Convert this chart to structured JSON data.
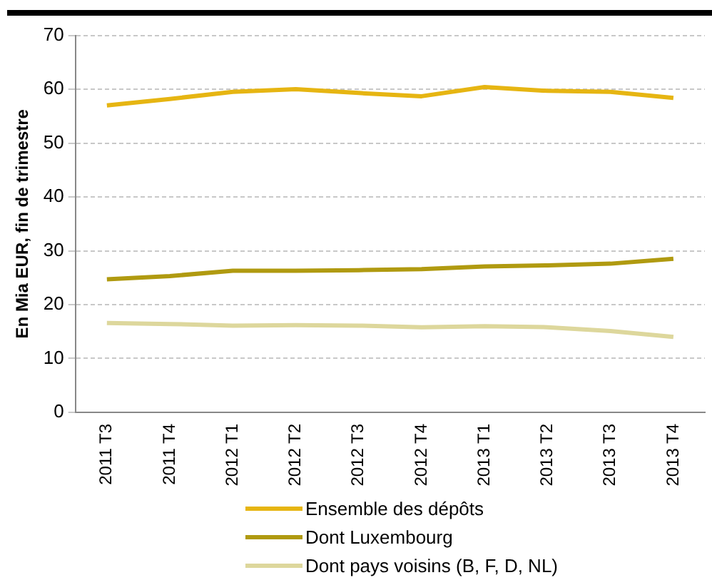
{
  "chart_data": {
    "type": "line",
    "ylabel": "En Mia EUR, fin de trimestre",
    "categories": [
      "2011 T3",
      "2011 T4",
      "2012 T1",
      "2012 T2",
      "2012 T3",
      "2012 T4",
      "2013 T1",
      "2013 T2",
      "2013 T3",
      "2013 T4"
    ],
    "series": [
      {
        "name": "Ensemble des dépôts",
        "color": "#e6b512",
        "values": [
          57,
          58.2,
          59.5,
          60,
          59.3,
          58.7,
          60.4,
          59.7,
          59.5,
          58.4
        ]
      },
      {
        "name": "Dont Luxembourg",
        "color": "#b09a10",
        "values": [
          24.7,
          25.3,
          26.3,
          26.3,
          26.4,
          26.6,
          27.1,
          27.3,
          27.6,
          28.5
        ]
      },
      {
        "name": "Dont pays voisins (B, F, D, NL)",
        "color": "#ddd79c",
        "values": [
          16.6,
          16.4,
          16.1,
          16.2,
          16.1,
          15.8,
          16,
          15.8,
          15.1,
          14
        ]
      }
    ],
    "ylim": [
      0,
      70
    ],
    "yticks": [
      0,
      10,
      20,
      30,
      40,
      50,
      60,
      70
    ],
    "grid": "y",
    "legend": "bottom",
    "marker": "none",
    "line_style": "solid"
  }
}
